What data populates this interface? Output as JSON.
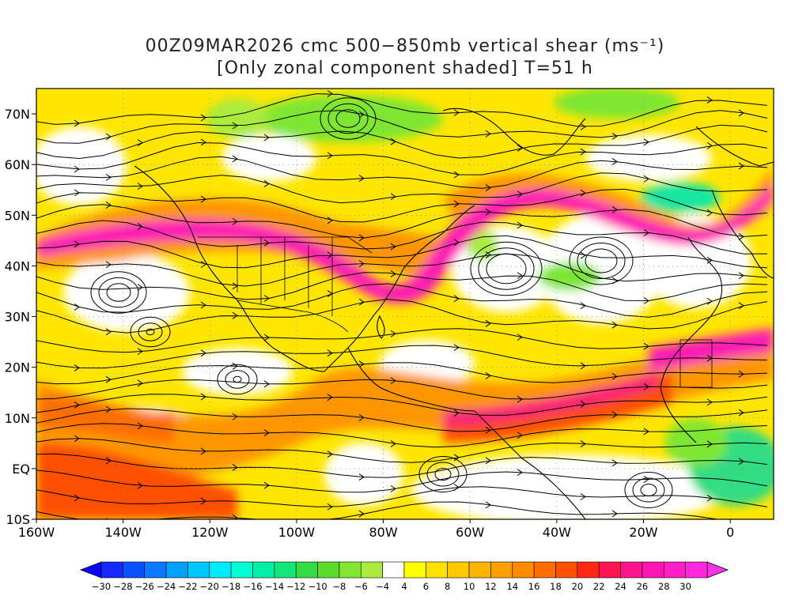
{
  "title": {
    "line1": "00Z09MAR2026 cmc 500−850mb vertical shear (ms⁻¹)",
    "line2": "[Only zonal component shaded] T=51 h"
  },
  "map": {
    "lat_labels": [
      "70N",
      "60N",
      "50N",
      "40N",
      "30N",
      "20N",
      "10N",
      "EQ",
      "10S"
    ],
    "lon_labels": [
      "160W",
      "140W",
      "120W",
      "100W",
      "80W",
      "60W",
      "40W",
      "20W",
      "0"
    ],
    "lon_range": [
      -160,
      10
    ],
    "lat_range": [
      -10,
      75
    ]
  },
  "colorbar": {
    "labels": [
      "-30",
      "-28",
      "-26",
      "-24",
      "-22",
      "-20",
      "-18",
      "-16",
      "-14",
      "-12",
      "-10",
      "-8",
      "-6",
      "-4",
      "4",
      "6",
      "8",
      "10",
      "12",
      "14",
      "16",
      "18",
      "20",
      "22",
      "24",
      "26",
      "28",
      "30"
    ],
    "colors": [
      "#1428ff",
      "#0a50ff",
      "#0a78ff",
      "#00a0ff",
      "#00c8ff",
      "#00ebff",
      "#00ffd2",
      "#00f0aa",
      "#14e67d",
      "#32dc46",
      "#5adc28",
      "#82e632",
      "#aaeb3c",
      "#ffffff",
      "#ffff00",
      "#ffe100",
      "#ffc800",
      "#ffb400",
      "#ffa000",
      "#ff8c00",
      "#ff6e00",
      "#ff5000",
      "#ff2814",
      "#ff1450",
      "#ff148c",
      "#ff14b4",
      "#ff1ec8",
      "#ff28dc"
    ]
  },
  "legend_colors": {
    "strong_positive": "#ff1ea0",
    "moderate_positive": "#ff7800",
    "weak_positive": "#ffdc00",
    "negative": "#5adc32"
  }
}
